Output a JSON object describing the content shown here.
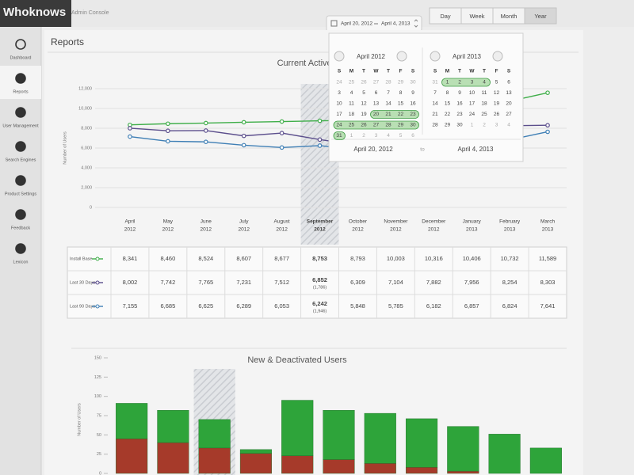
{
  "header": {
    "brand": "Whoknows",
    "subtitle": "Admin Console",
    "date_range": {
      "start": "April 20, 2012",
      "end": "April 4, 2013"
    },
    "periods": [
      "Day",
      "Week",
      "Month",
      "Year"
    ]
  },
  "sidebar": [
    "Dashboard",
    "Reports",
    "User Management",
    "Search Engines",
    "Product Settings",
    "Feedback",
    "Lexicon"
  ],
  "page_title": "Reports",
  "chart_data": [
    {
      "type": "line",
      "title": "Current Active Users",
      "y_label": "Number of Users",
      "categories": [
        [
          "April",
          "2012"
        ],
        [
          "May",
          "2012"
        ],
        [
          "June",
          "2012"
        ],
        [
          "July",
          "2012"
        ],
        [
          "August",
          "2012"
        ],
        [
          "September",
          "2012"
        ],
        [
          "October",
          "2012"
        ],
        [
          "November",
          "2012"
        ],
        [
          "December",
          "2012"
        ],
        [
          "January",
          "2013"
        ],
        [
          "February",
          "2013"
        ],
        [
          "March",
          "2013"
        ]
      ],
      "ylim": [
        0,
        12000
      ],
      "yticks": [
        0,
        {
          "value": 2000,
          "label": "2,000"
        },
        {
          "value": 4000,
          "label": "4,000"
        },
        {
          "value": 6000,
          "label": "6,000"
        },
        {
          "value": 8000,
          "label": "8,000"
        },
        {
          "value": 10000,
          "label": "10,000"
        },
        {
          "value": 12000,
          "label": "12,000"
        }
      ],
      "grid": true,
      "series": [
        {
          "name": "Install Base",
          "color": "#3fae49",
          "values": [
            8341,
            8460,
            8524,
            8607,
            8677,
            8753,
            8793,
            10003,
            10316,
            10406,
            10732,
            11589
          ],
          "value_labels": [
            "8,341",
            "8,460",
            "8,524",
            "8,607",
            "8,677",
            "8,753",
            "8,793",
            "10,003",
            "10,316",
            "10,406",
            "10,732",
            "11,589"
          ]
        },
        {
          "name": "Last 30 Days",
          "color": "#5b4e8c",
          "values": [
            8002,
            7742,
            7765,
            7231,
            7512,
            6852,
            6309,
            7104,
            7882,
            7956,
            8254,
            8303
          ],
          "value_labels": [
            "8,002",
            "7,742",
            "7,765",
            "7,231",
            "7,512",
            "6,852",
            "6,309",
            "7,104",
            "7,882",
            "7,956",
            "8,254",
            "8,303"
          ]
        },
        {
          "name": "Last 90 Days",
          "color": "#3f7fb5",
          "values": [
            7155,
            6685,
            6625,
            6289,
            6053,
            6242,
            5848,
            5785,
            6182,
            6857,
            6824,
            7641
          ],
          "value_labels": [
            "7,155",
            "6,685",
            "6,625",
            "6,289",
            "6,053",
            "6,242",
            "5,848",
            "5,785",
            "6,182",
            "6,857",
            "6,824",
            "7,641"
          ]
        }
      ],
      "annotations": [
        "(1,786)",
        "(1,946)"
      ]
    },
    {
      "type": "bar",
      "stacked": true,
      "title": "New & Deactivated Users",
      "y_label": "Number of Users",
      "ylim": [
        0,
        150
      ],
      "yticks": [
        0,
        25,
        50,
        75,
        100,
        125,
        150
      ],
      "series": [
        {
          "color": "#a63a2a",
          "values": [
            45,
            40,
            33,
            26,
            23,
            18,
            13,
            8,
            3,
            0,
            0
          ]
        },
        {
          "color": "#2ea43a",
          "values": [
            46,
            42,
            37,
            5,
            72,
            64,
            65,
            63,
            58,
            51,
            33
          ]
        }
      ]
    }
  ],
  "datepicker": {
    "months": [
      {
        "title": "April 2012",
        "weekdays": [
          "S",
          "M",
          "T",
          "W",
          "T",
          "F",
          "S"
        ],
        "weeks": [
          [
            24,
            25,
            26,
            27,
            28,
            29,
            30
          ],
          [
            3,
            4,
            5,
            6,
            7,
            8,
            9
          ],
          [
            10,
            11,
            12,
            13,
            14,
            15,
            16
          ],
          [
            17,
            18,
            19,
            20,
            21,
            22,
            23
          ],
          [
            24,
            25,
            26,
            27,
            28,
            29,
            30
          ],
          [
            31,
            1,
            2,
            3,
            4,
            5,
            6
          ]
        ]
      },
      {
        "title": "April 2013",
        "weekdays": [
          "S",
          "M",
          "T",
          "W",
          "T",
          "F",
          "S"
        ],
        "weeks": [
          [
            31,
            1,
            2,
            3,
            4,
            5,
            6
          ],
          [
            7,
            8,
            9,
            10,
            11,
            12,
            13
          ],
          [
            14,
            15,
            16,
            17,
            18,
            19,
            20
          ],
          [
            21,
            22,
            23,
            24,
            25,
            26,
            27
          ],
          [
            28,
            29,
            30,
            1,
            2,
            3,
            4
          ]
        ]
      }
    ],
    "from": "April 20, 2012",
    "to_label": "to",
    "to": "April 4, 2013"
  }
}
